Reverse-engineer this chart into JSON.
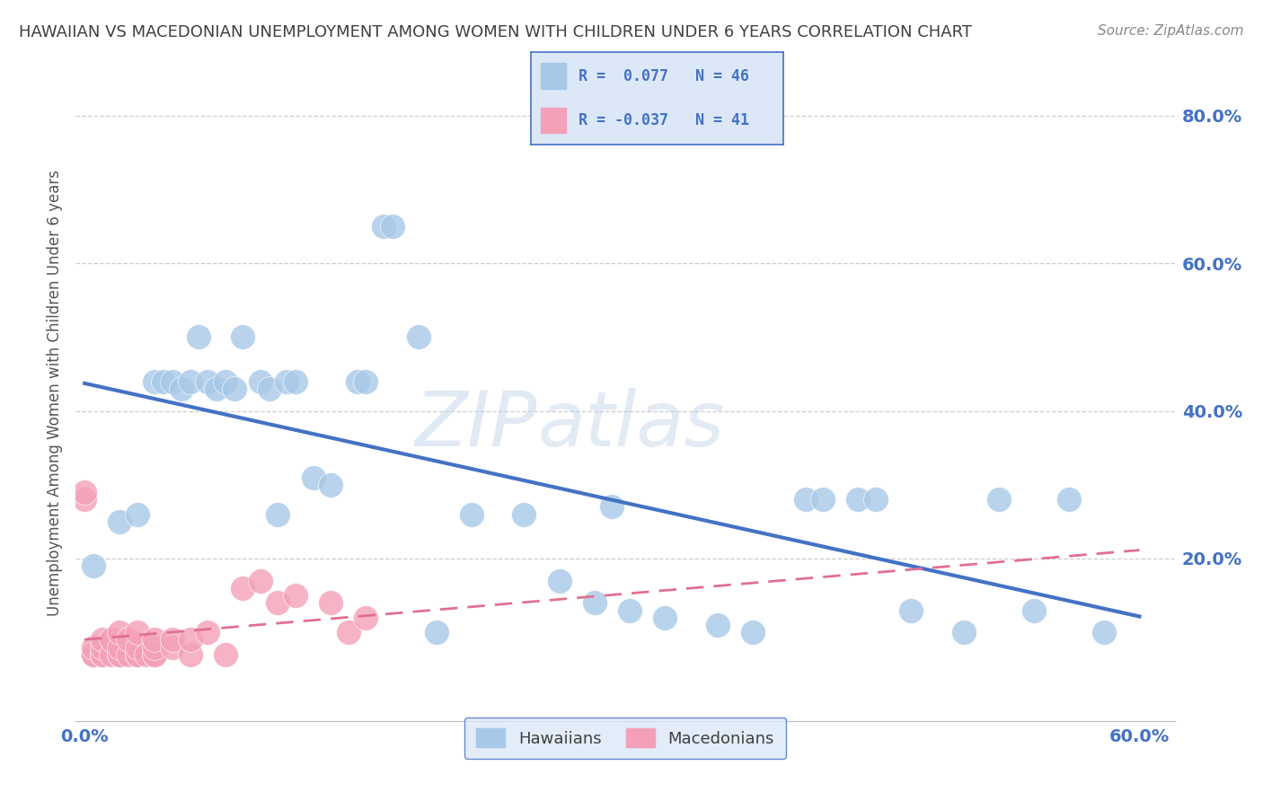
{
  "title": "HAWAIIAN VS MACEDONIAN UNEMPLOYMENT AMONG WOMEN WITH CHILDREN UNDER 6 YEARS CORRELATION CHART",
  "source": "Source: ZipAtlas.com",
  "ylabel_label": "Unemployment Among Women with Children Under 6 years",
  "xlim": [
    -0.005,
    0.62
  ],
  "ylim": [
    -0.02,
    0.87
  ],
  "xticks": [
    0.0,
    0.6
  ],
  "xtick_labels": [
    "0.0%",
    "60.0%"
  ],
  "yticks": [
    0.2,
    0.4,
    0.6,
    0.8
  ],
  "ytick_labels": [
    "20.0%",
    "40.0%",
    "60.0%",
    "80.0%"
  ],
  "hawaiian_R": 0.077,
  "hawaiian_N": 46,
  "macedonian_R": -0.037,
  "macedonian_N": 41,
  "hawaiian_color": "#a8c8e8",
  "macedonian_color": "#f4a0b8",
  "hawaiian_line_color": "#4472c4",
  "macedonian_line_color": "#e07090",
  "background_color": "#ffffff",
  "grid_color": "#c8c8c8",
  "title_color": "#404040",
  "axis_label_color": "#555555",
  "tick_color": "#4472c4",
  "legend_box_color": "#dce8f8",
  "watermark_color": "#d0dce8",
  "hawaiian_x": [
    0.005,
    0.02,
    0.03,
    0.04,
    0.045,
    0.05,
    0.055,
    0.06,
    0.065,
    0.07,
    0.075,
    0.08,
    0.085,
    0.09,
    0.1,
    0.105,
    0.11,
    0.115,
    0.12,
    0.13,
    0.14,
    0.155,
    0.16,
    0.17,
    0.175,
    0.19,
    0.2,
    0.22,
    0.25,
    0.27,
    0.29,
    0.31,
    0.33,
    0.36,
    0.38,
    0.41,
    0.44,
    0.5,
    0.52,
    0.54,
    0.56,
    0.58,
    0.42,
    0.45,
    0.47,
    0.3
  ],
  "hawaiian_y": [
    0.19,
    0.25,
    0.26,
    0.44,
    0.44,
    0.44,
    0.43,
    0.44,
    0.5,
    0.44,
    0.43,
    0.44,
    0.43,
    0.5,
    0.44,
    0.43,
    0.26,
    0.44,
    0.44,
    0.31,
    0.3,
    0.44,
    0.44,
    0.65,
    0.65,
    0.5,
    0.1,
    0.26,
    0.26,
    0.17,
    0.14,
    0.13,
    0.12,
    0.11,
    0.1,
    0.28,
    0.28,
    0.1,
    0.28,
    0.13,
    0.28,
    0.1,
    0.28,
    0.28,
    0.13,
    0.27
  ],
  "macedonian_x": [
    0.0,
    0.0,
    0.005,
    0.005,
    0.005,
    0.01,
    0.01,
    0.01,
    0.01,
    0.01,
    0.015,
    0.015,
    0.02,
    0.02,
    0.02,
    0.02,
    0.02,
    0.025,
    0.025,
    0.03,
    0.03,
    0.03,
    0.03,
    0.035,
    0.04,
    0.04,
    0.04,
    0.04,
    0.05,
    0.05,
    0.06,
    0.06,
    0.07,
    0.08,
    0.09,
    0.1,
    0.11,
    0.12,
    0.14,
    0.15,
    0.16
  ],
  "macedonian_y": [
    0.28,
    0.29,
    0.07,
    0.07,
    0.08,
    0.07,
    0.07,
    0.07,
    0.08,
    0.09,
    0.07,
    0.09,
    0.07,
    0.07,
    0.07,
    0.08,
    0.1,
    0.07,
    0.09,
    0.07,
    0.07,
    0.08,
    0.1,
    0.07,
    0.07,
    0.07,
    0.08,
    0.09,
    0.08,
    0.09,
    0.07,
    0.09,
    0.1,
    0.07,
    0.16,
    0.17,
    0.14,
    0.15,
    0.14,
    0.1,
    0.12
  ]
}
